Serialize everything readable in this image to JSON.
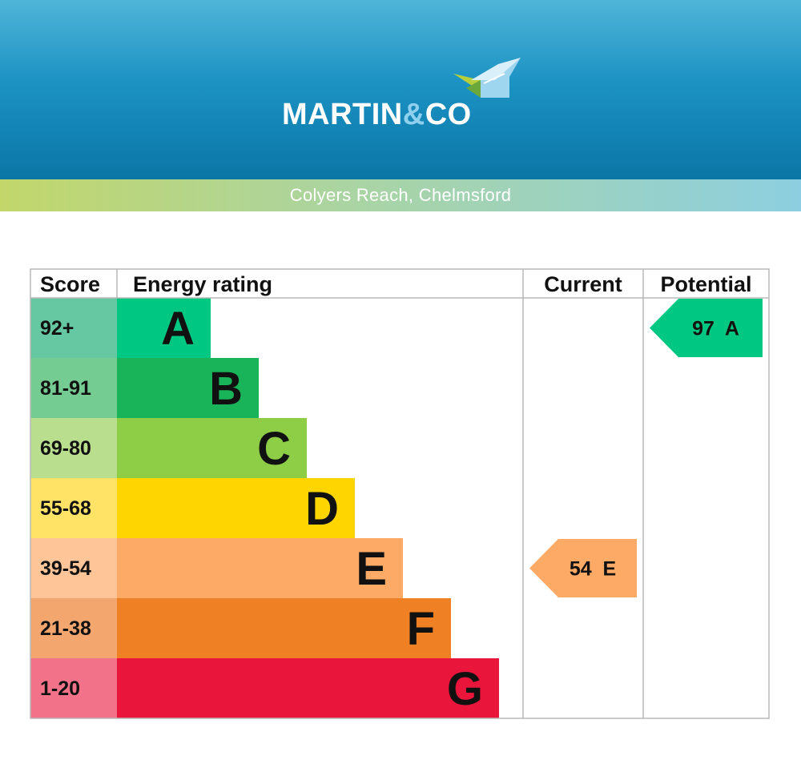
{
  "header": {
    "brand_main": "MARTIN",
    "brand_amp": "&",
    "brand_end": "CO",
    "logo_icon": "house-roof-icon",
    "location": "Colyers Reach, Chelmsford"
  },
  "colors": {
    "header_top": "#4fb4d8",
    "header_bottom": "#0a76a6",
    "subbar_left": "#c2d66a",
    "subbar_right": "#8dcfe0",
    "grid": "#b8b8b8"
  },
  "chart_data": {
    "type": "bar",
    "columns": [
      "Score",
      "Energy rating",
      "Current",
      "Potential"
    ],
    "bands": [
      {
        "letter": "A",
        "range": "92+",
        "color": "#00c781",
        "score_bg": "#66c8a2"
      },
      {
        "letter": "B",
        "range": "81-91",
        "color": "#19b459",
        "score_bg": "#75cc93"
      },
      {
        "letter": "C",
        "range": "69-80",
        "color": "#8dce46",
        "score_bg": "#b9df8e"
      },
      {
        "letter": "D",
        "range": "55-68",
        "color": "#ffd500",
        "score_bg": "#ffe366"
      },
      {
        "letter": "E",
        "range": "39-54",
        "color": "#fcaa65",
        "score_bg": "#fdc598"
      },
      {
        "letter": "F",
        "range": "21-38",
        "color": "#ef8023",
        "score_bg": "#f4a66f"
      },
      {
        "letter": "G",
        "range": "1-20",
        "color": "#e9153b",
        "score_bg": "#f27389"
      }
    ],
    "current": {
      "value": 54,
      "letter": "E",
      "label": "54  E",
      "color": "#fcaa65"
    },
    "potential": {
      "value": 97,
      "letter": "A",
      "label": "97  A",
      "color": "#00c781"
    }
  }
}
